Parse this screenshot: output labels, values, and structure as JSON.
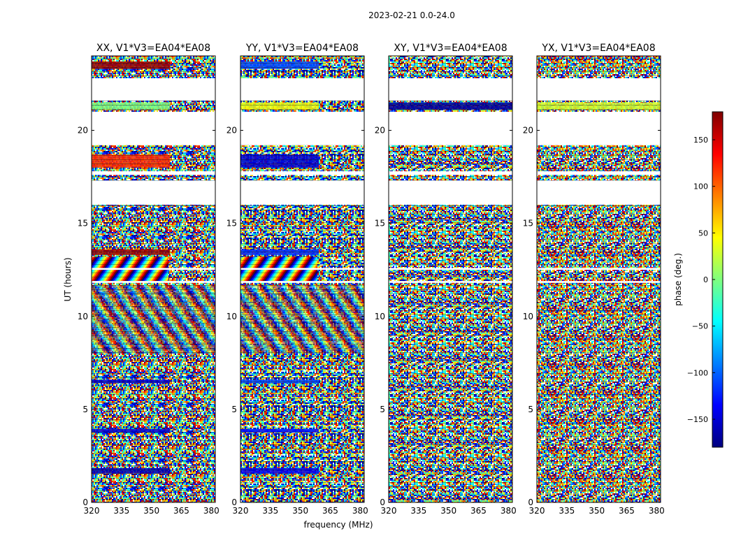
{
  "suptitle": "2023-02-21 0.0-24.0",
  "colors": {
    "frame": "#000000",
    "gap": "#ffffff",
    "background": "#ffffff"
  },
  "chart_data": [
    {
      "type": "heatmap",
      "title": "XX, V1*V3=EA04*EA08",
      "xlabel": "frequency (MHz)",
      "ylabel": "UT (hours)",
      "xlim": [
        320,
        382
      ],
      "ylim": [
        0,
        24
      ],
      "xticks": [
        320,
        335,
        350,
        365,
        380
      ],
      "yticks": [
        0,
        5,
        10,
        15,
        20
      ],
      "description": "phase per frequency/time; mostly noise with calibrator bands near 1.7, 3.8, 6.5, 12-13.5, 18-18.6, 21.3 and 23.4 h"
    },
    {
      "type": "heatmap",
      "title": "YY, V1*V3=EA04*EA08",
      "xlim": [
        320,
        382
      ],
      "ylim": [
        0,
        24
      ],
      "xticks": [
        320,
        335,
        350,
        365,
        380
      ],
      "yticks": [
        0,
        5,
        10,
        15,
        20
      ]
    },
    {
      "type": "heatmap",
      "title": "XY, V1*V3=EA04*EA08",
      "xlim": [
        320,
        382
      ],
      "ylim": [
        0,
        24
      ],
      "xticks": [
        320,
        335,
        350,
        365,
        380
      ],
      "yticks": [
        0,
        5,
        10,
        15,
        20
      ]
    },
    {
      "type": "heatmap",
      "title": "YX, V1*V3=EA04*EA08",
      "xlim": [
        320,
        382
      ],
      "ylim": [
        0,
        24
      ],
      "xticks": [
        320,
        335,
        350,
        365,
        380
      ],
      "yticks": [
        0,
        5,
        10,
        15,
        20
      ]
    }
  ],
  "colorbar": {
    "label": "phase (deg.)",
    "range": [
      -180,
      180
    ],
    "ticks": [
      150,
      100,
      50,
      0,
      -50,
      -100,
      -150
    ],
    "tick_labels": [
      "150",
      "100",
      "50",
      "0",
      "−50",
      "−100",
      "−150"
    ],
    "colormap": [
      "#00007f",
      "#0000ff",
      "#007fff",
      "#00ffff",
      "#7fff7f",
      "#ffff00",
      "#ff7f00",
      "#ff0000",
      "#7f0000"
    ]
  },
  "gaps_hours": [
    [
      16.0,
      17.3
    ],
    [
      17.6,
      17.8
    ],
    [
      19.2,
      21.0
    ],
    [
      21.6,
      22.8
    ],
    [
      11.8,
      11.9
    ],
    [
      12.5,
      12.6
    ]
  ],
  "bands": [
    {
      "y0": 1.55,
      "y1": 1.85,
      "phase": [
        -160,
        -140,
        0,
        0
      ],
      "label": "band-1.7h"
    },
    {
      "y0": 3.75,
      "y1": 3.95,
      "phase": [
        -150,
        -130,
        0,
        0
      ],
      "label": "band-3.8h"
    },
    {
      "y0": 6.4,
      "y1": 6.6,
      "phase": [
        -150,
        -110,
        0,
        0
      ],
      "label": "band-6.5h"
    },
    {
      "y0": 13.3,
      "y1": 13.6,
      "phase": [
        170,
        -120,
        0,
        0
      ],
      "label": "band-13.4h"
    },
    {
      "y0": 18.0,
      "y1": 18.7,
      "phase": [
        120,
        -150,
        0,
        0
      ],
      "label": "band-18.3h"
    },
    {
      "y0": 21.1,
      "y1": 21.5,
      "phase": [
        0,
        40,
        -170,
        30
      ],
      "label": "band-21.3h"
    },
    {
      "y0": 23.3,
      "y1": 23.7,
      "phase": [
        170,
        -110,
        0,
        0
      ],
      "label": "band-23.5h"
    }
  ]
}
